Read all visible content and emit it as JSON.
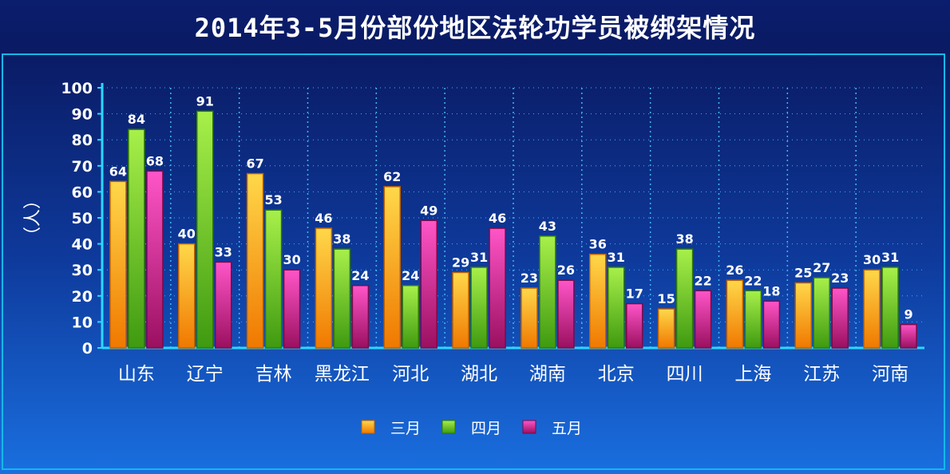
{
  "title": "2014年3-5月份部份地区法轮功学员被绑架情况",
  "chart_data": {
    "type": "bar",
    "title": "2014年3-5月份部份地区法轮功学员被绑架情况",
    "ylabel": "（人）",
    "xlabel": "",
    "ylim": [
      0,
      100
    ],
    "yticks": [
      0,
      10,
      20,
      30,
      40,
      50,
      60,
      70,
      80,
      90,
      100
    ],
    "grid": "vertical dotted",
    "legend_position": "bottom-center",
    "categories": [
      "山东",
      "辽宁",
      "吉林",
      "黑龙江",
      "河北",
      "湖北",
      "湖南",
      "北京",
      "四川",
      "上海",
      "江苏",
      "河南"
    ],
    "series": [
      {
        "name": "三月",
        "values": [
          64,
          40,
          67,
          46,
          62,
          29,
          23,
          36,
          15,
          26,
          25,
          30
        ],
        "color": "#f5a800"
      },
      {
        "name": "四月",
        "values": [
          84,
          91,
          53,
          38,
          24,
          31,
          43,
          31,
          38,
          22,
          27,
          31
        ],
        "color": "#7ed321"
      },
      {
        "name": "五月",
        "values": [
          68,
          33,
          30,
          24,
          49,
          46,
          26,
          17,
          22,
          18,
          23,
          9
        ],
        "color": "#e0309a"
      }
    ]
  }
}
